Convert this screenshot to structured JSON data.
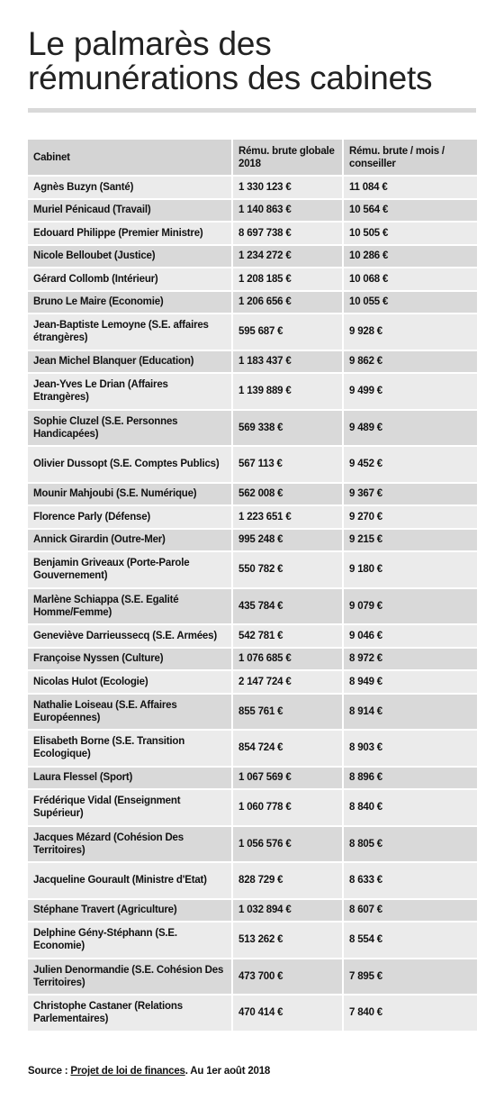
{
  "title": {
    "line1": "Le palmarès des",
    "line2": "rémunérations des cabinets"
  },
  "table": {
    "headers": [
      "Cabinet",
      "Rému. brute globale 2018",
      "Rému. brute / mois / conseiller"
    ],
    "rows": [
      {
        "cabinet": "Agnès Buzyn (Santé)",
        "globale": "1 330 123 €",
        "mois": "11 084 €"
      },
      {
        "cabinet": "Muriel Pénicaud (Travail)",
        "globale": "1 140 863 €",
        "mois": "10 564 €"
      },
      {
        "cabinet": "Edouard Philippe (Premier Ministre)",
        "globale": "8 697 738 €",
        "mois": "10 505 €"
      },
      {
        "cabinet": "Nicole Belloubet (Justice)",
        "globale": "1 234 272 €",
        "mois": "10 286 €"
      },
      {
        "cabinet": "Gérard Collomb (Intérieur)",
        "globale": "1 208 185 €",
        "mois": "10 068 €"
      },
      {
        "cabinet": "Bruno Le Maire (Economie)",
        "globale": "1 206 656 €",
        "mois": "10 055 €"
      },
      {
        "cabinet": "Jean-Baptiste Lemoyne (S.E. affaires étrangères)",
        "globale": "595 687 €",
        "mois": "9 928 €"
      },
      {
        "cabinet": "Jean Michel Blanquer (Education)",
        "globale": "1 183 437 €",
        "mois": "9 862 €"
      },
      {
        "cabinet": "Jean-Yves Le Drian (Affaires Etrangères)",
        "globale": "1 139 889 €",
        "mois": "9 499 €"
      },
      {
        "cabinet": "Sophie Cluzel (S.E. Personnes Handicapées)",
        "globale": "569 338 €",
        "mois": "9 489 €"
      },
      {
        "cabinet": "Olivier Dussopt (S.E. Comptes Publics)",
        "globale": "567 113 €",
        "mois": "9 452 €"
      },
      {
        "cabinet": "Mounir Mahjoubi (S.E. Numérique)",
        "globale": "562 008 €",
        "mois": "9 367 €"
      },
      {
        "cabinet": "Florence Parly (Défense)",
        "globale": "1 223 651 €",
        "mois": "9 270 €"
      },
      {
        "cabinet": "Annick Girardin (Outre-Mer)",
        "globale": "995 248 €",
        "mois": "9 215 €"
      },
      {
        "cabinet": "Benjamin Griveaux (Porte-Parole Gouvernement)",
        "globale": "550 782 €",
        "mois": "9 180 €"
      },
      {
        "cabinet": "Marlène Schiappa (S.E. Egalité Homme/Femme)",
        "globale": "435 784 €",
        "mois": "9 079 €"
      },
      {
        "cabinet": "Geneviève Darrieussecq (S.E. Armées)",
        "globale": "542 781 €",
        "mois": "9 046 €"
      },
      {
        "cabinet": "Françoise Nyssen (Culture)",
        "globale": "1 076 685 €",
        "mois": "8 972 €"
      },
      {
        "cabinet": "Nicolas Hulot (Ecologie)",
        "globale": "2 147 724 €",
        "mois": "8 949 €"
      },
      {
        "cabinet": "Nathalie Loiseau (S.E. Affaires Européennes)",
        "globale": "855 761 €",
        "mois": "8 914 €"
      },
      {
        "cabinet": "Elisabeth Borne (S.E. Transition Ecologique)",
        "globale": "854 724 €",
        "mois": "8 903 €"
      },
      {
        "cabinet": "Laura Flessel (Sport)",
        "globale": "1 067 569 €",
        "mois": "8 896 €"
      },
      {
        "cabinet": "Frédérique Vidal (Enseignment Supérieur)",
        "globale": "1 060 778 €",
        "mois": "8 840 €"
      },
      {
        "cabinet": "Jacques Mézard (Cohésion Des Territoires)",
        "globale": "1 056 576 €",
        "mois": "8 805 €"
      },
      {
        "cabinet": "Jacqueline Gourault (Ministre d'Etat)",
        "globale": "828 729 €",
        "mois": "8 633 €"
      },
      {
        "cabinet": "Stéphane Travert (Agriculture)",
        "globale": "1 032 894 €",
        "mois": "8 607 €"
      },
      {
        "cabinet": "Delphine Gény-Stéphann (S.E. Economie)",
        "globale": "513 262 €",
        "mois": "8 554 €"
      },
      {
        "cabinet": "Julien Denormandie (S.E. Cohésion Des Territoires)",
        "globale": "473 700 €",
        "mois": "7 895 €"
      },
      {
        "cabinet": "Christophe Castaner (Relations Parlementaires)",
        "globale": "470 414 €",
        "mois": "7 840 €"
      }
    ]
  },
  "source": {
    "prefix": "Source : ",
    "link_text": "Projet de loi de finances",
    "suffix": ". Au 1er août 2018"
  },
  "colors": {
    "header_bg": "#d4d4d4",
    "row_light": "#ebebeb",
    "row_dark": "#d9d9d9",
    "rule": "#d9d9d9",
    "text": "#111111"
  }
}
